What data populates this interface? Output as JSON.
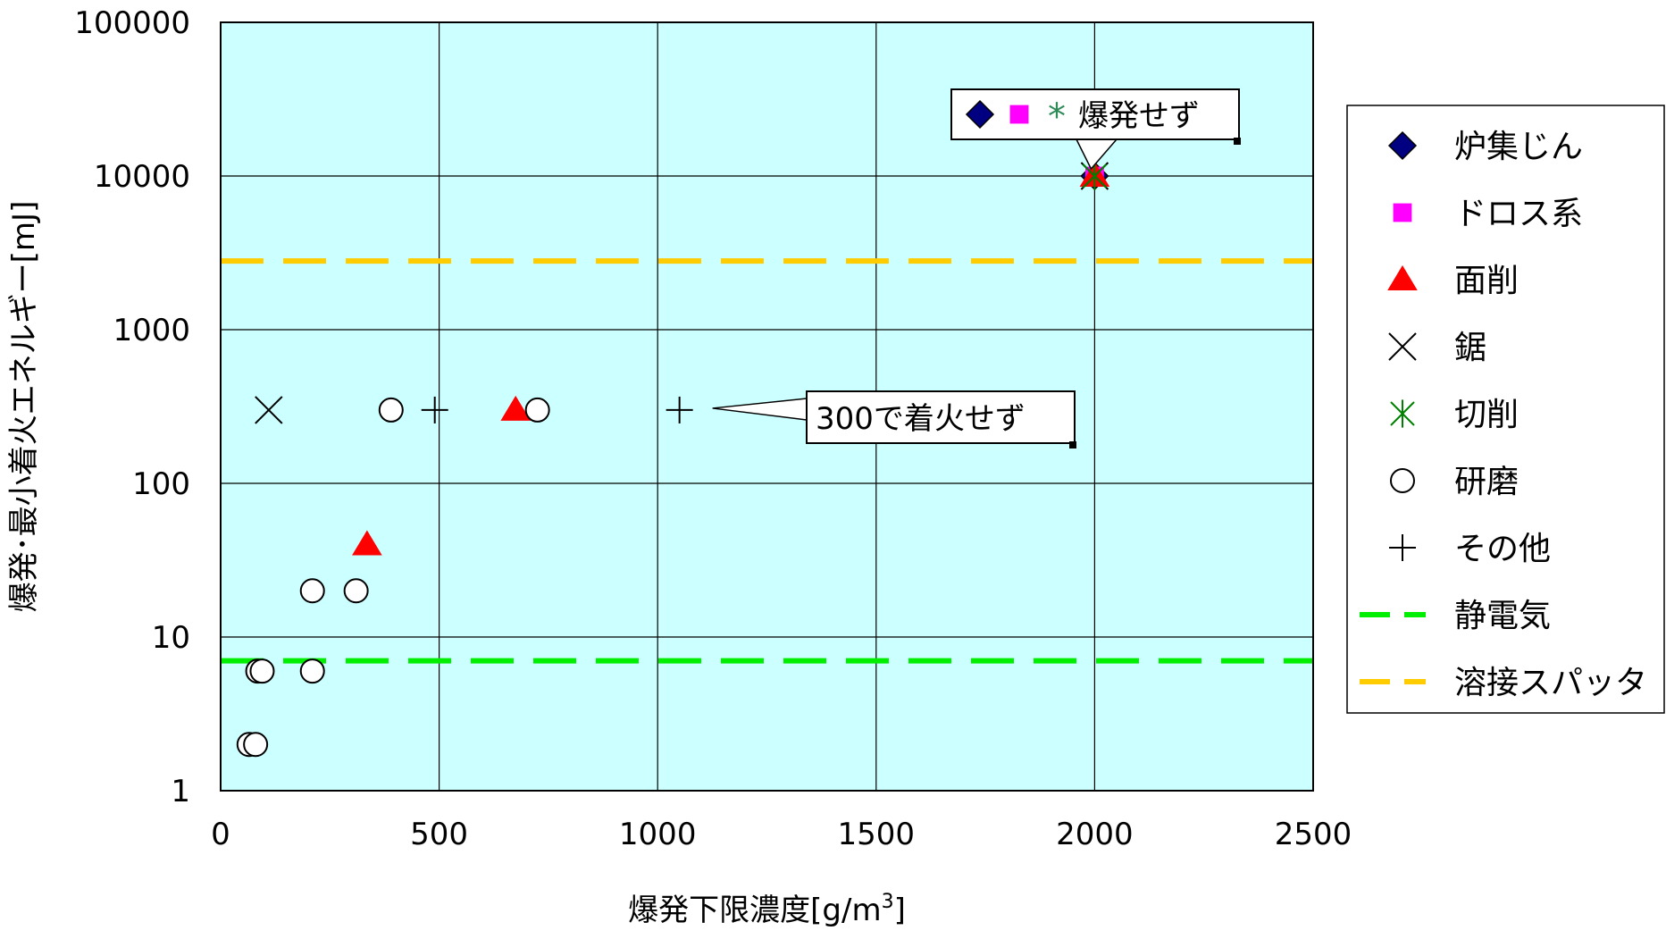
{
  "chart_data": {
    "type": "scatter",
    "title": "",
    "xlabel": "爆発下限濃度[g/m",
    "xlabel_sup": "3",
    "xlabel_end": "]",
    "ylabel": "爆発･最小着火エネルギー[mJ]",
    "xlim": [
      0,
      2500
    ],
    "ylim": [
      1,
      100000
    ],
    "y_scale": "log",
    "x_ticks": [
      "0",
      "500",
      "1000",
      "1500",
      "2000",
      "2500"
    ],
    "y_ticks": [
      "1",
      "10",
      "100",
      "1000",
      "10000",
      "100000"
    ],
    "grid": true,
    "plot_background": "#ccffff",
    "legend_position": "right",
    "series": [
      {
        "name": "炉集じん",
        "marker": "diamond",
        "color": "#000080",
        "points": [
          [
            2000,
            10000
          ]
        ]
      },
      {
        "name": "ドロス系",
        "marker": "square",
        "color": "#ff00ff",
        "points": [
          [
            2000,
            10000
          ]
        ]
      },
      {
        "name": "面削",
        "marker": "triangle",
        "color": "#ff0000",
        "points": [
          [
            335,
            40
          ],
          [
            675,
            300
          ],
          [
            2000,
            10000
          ]
        ]
      },
      {
        "name": "鋸",
        "marker": "x",
        "color": "#000000",
        "points": [
          [
            110,
            300
          ],
          [
            2000,
            10000
          ]
        ]
      },
      {
        "name": "切削",
        "marker": "asterisk",
        "color": "#008000",
        "points": [
          [
            2000,
            10000
          ]
        ]
      },
      {
        "name": "研磨",
        "marker": "circle",
        "color": "#000000",
        "points": [
          [
            65,
            2
          ],
          [
            80,
            2
          ],
          [
            85,
            6
          ],
          [
            95,
            6
          ],
          [
            210,
            20
          ],
          [
            210,
            6
          ],
          [
            310,
            20
          ],
          [
            390,
            300
          ],
          [
            725,
            300
          ]
        ]
      },
      {
        "name": "その他",
        "marker": "plus",
        "color": "#000000",
        "points": [
          [
            490,
            300
          ],
          [
            1050,
            300
          ]
        ]
      },
      {
        "name": "静電気",
        "marker": "dashed-line",
        "color": "#00ee00",
        "points": [
          [
            0,
            7
          ],
          [
            2500,
            7
          ]
        ]
      },
      {
        "name": "溶接スパッタ",
        "marker": "dashed-line",
        "color": "#ffcc00",
        "points": [
          [
            0,
            2800
          ],
          [
            2500,
            2800
          ]
        ]
      }
    ],
    "annotations": [
      {
        "text": "爆発せず",
        "anchor": [
          2000,
          10000
        ],
        "prefix_symbols": [
          "◆",
          "■",
          "*"
        ]
      },
      {
        "text": "300で着火せず",
        "anchor": [
          1050,
          300
        ]
      }
    ]
  }
}
